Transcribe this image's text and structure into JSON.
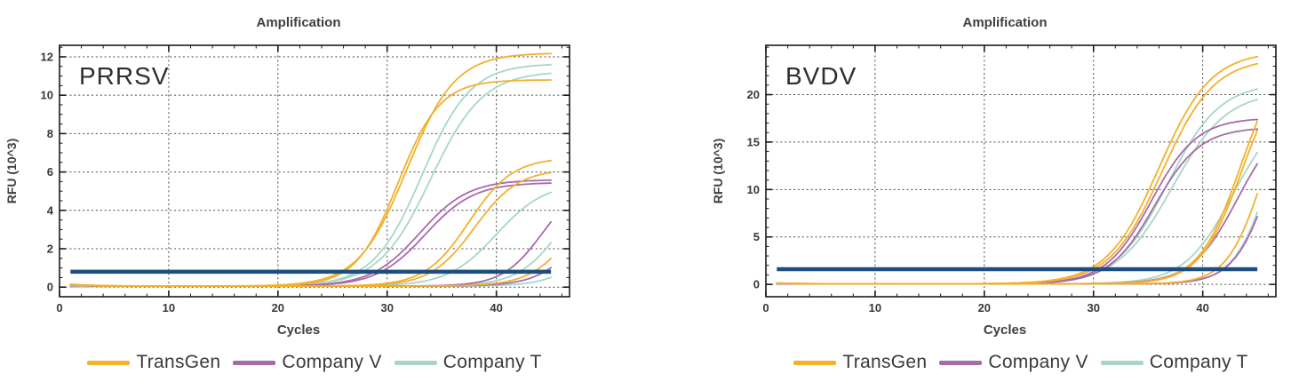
{
  "page": {
    "background": "#ffffff"
  },
  "palette": {
    "TransGen": "#f2b02c",
    "Company V": "#a76bab",
    "Company T": "#a8d6c6",
    "threshold": "#1e4e7d",
    "text": "#3f3f3f",
    "axis": "#1a1a1a",
    "grid": "#4a4a4a"
  },
  "legend": {
    "items": [
      {
        "label": "TransGen",
        "color": "#f2b02c"
      },
      {
        "label": "Company V",
        "color": "#a76bab"
      },
      {
        "label": "Company T",
        "color": "#a8d6c6"
      }
    ]
  },
  "chart_data": [
    {
      "type": "line",
      "title": "Amplification",
      "inner_label": "PRRSV",
      "xlabel": "Cycles",
      "ylabel": "RFU (10^3)",
      "xlim": [
        0,
        46.7
      ],
      "ylim": [
        -0.5,
        12.6
      ],
      "xticks": [
        0,
        10,
        20,
        30,
        40
      ],
      "yticks": [
        0,
        2,
        4,
        6,
        8,
        10,
        12
      ],
      "x_minor_step": 2,
      "y_minor_step": 0.5,
      "grid": "dotted",
      "baseline_rfu": 0.05,
      "cycle_range": [
        1,
        45
      ],
      "threshold": {
        "y": 0.8,
        "x_start": 1,
        "x_end": 45
      },
      "series": [
        {
          "company": "Company T",
          "midpoint": 33.2,
          "slope": 0.45,
          "plateau": 11.6,
          "bump": -0.08
        },
        {
          "company": "Company T",
          "midpoint": 34.0,
          "slope": 0.42,
          "plateau": 11.2,
          "bump": 0.03
        },
        {
          "company": "Company T",
          "midpoint": 40.0,
          "slope": 0.45,
          "plateau": 5.4,
          "bump": 0.03
        },
        {
          "company": "Company T",
          "midpoint": 46.0,
          "slope": 0.5,
          "plateau": 6.0,
          "bump": 0.03
        },
        {
          "company": "Company T",
          "midpoint": 50.0,
          "slope": 0.5,
          "plateau": 6.0,
          "bump": 0.03
        },
        {
          "company": "Company V",
          "midpoint": 33.0,
          "slope": 0.45,
          "plateau": 5.55,
          "bump": 0.08
        },
        {
          "company": "Company V",
          "midpoint": 33.5,
          "slope": 0.45,
          "plateau": 5.4,
          "bump": 0.06
        },
        {
          "company": "Company V",
          "midpoint": 44.2,
          "slope": 0.55,
          "plateau": 5.5,
          "bump": 0.05
        },
        {
          "company": "Company V",
          "midpoint": 48.3,
          "slope": 0.5,
          "plateau": 6.0,
          "bump": 0.05
        },
        {
          "company": "TransGen",
          "midpoint": 31.8,
          "slope": 0.45,
          "plateau": 12.15,
          "bump": 0.15
        },
        {
          "company": "TransGen",
          "midpoint": 31.0,
          "slope": 0.52,
          "plateau": 10.75,
          "bump": 0.12
        },
        {
          "company": "TransGen",
          "midpoint": 37.5,
          "slope": 0.5,
          "plateau": 6.7,
          "bump": 0.1
        },
        {
          "company": "TransGen",
          "midpoint": 38.0,
          "slope": 0.5,
          "plateau": 6.1,
          "bump": 0.08
        },
        {
          "company": "TransGen",
          "midpoint": 47.3,
          "slope": 0.5,
          "plateau": 6.0,
          "bump": 0.08
        }
      ]
    },
    {
      "type": "line",
      "title": "Amplification",
      "inner_label": "BVDV",
      "xlabel": "Cycles",
      "ylabel": "RFU (10^3)",
      "xlim": [
        0,
        46.7
      ],
      "ylim": [
        -1.3,
        25.2
      ],
      "xticks": [
        0,
        10,
        20,
        30,
        40
      ],
      "yticks": [
        0,
        5,
        10,
        15,
        20
      ],
      "x_minor_step": 2,
      "y_minor_step": 1,
      "grid": "dotted",
      "baseline_rfu": 0.05,
      "cycle_range": [
        1,
        45
      ],
      "threshold": {
        "y": 1.6,
        "x_start": 1,
        "x_end": 45
      },
      "series": [
        {
          "company": "Company T",
          "midpoint": 36.8,
          "slope": 0.42,
          "plateau": 21.2,
          "bump": 0.05
        },
        {
          "company": "Company T",
          "midpoint": 37.2,
          "slope": 0.4,
          "plateau": 20.3,
          "bump": 0.03
        },
        {
          "company": "Company T",
          "midpoint": 42.8,
          "slope": 0.45,
          "plateau": 19.0,
          "bump": 0.03
        },
        {
          "company": "Company T",
          "midpoint": 46.3,
          "slope": 0.6,
          "plateau": 24.0,
          "bump": 0.03
        },
        {
          "company": "Company V",
          "midpoint": 35.3,
          "slope": 0.48,
          "plateau": 17.5,
          "bump": 0.08
        },
        {
          "company": "Company V",
          "midpoint": 35.6,
          "slope": 0.48,
          "plateau": 16.5,
          "bump": 0.06
        },
        {
          "company": "Company V",
          "midpoint": 43.2,
          "slope": 0.48,
          "plateau": 18.0,
          "bump": 0.05
        },
        {
          "company": "Company V",
          "midpoint": 46.5,
          "slope": 0.58,
          "plateau": 24.0,
          "bump": 0.05
        },
        {
          "company": "TransGen",
          "midpoint": 36.0,
          "slope": 0.42,
          "plateau": 24.5,
          "bump": 0.15
        },
        {
          "company": "TransGen",
          "midpoint": 36.3,
          "slope": 0.42,
          "plateau": 23.8,
          "bump": 0.12
        },
        {
          "company": "TransGen",
          "midpoint": 43.5,
          "slope": 0.52,
          "plateau": 25.0,
          "bump": 0.1
        },
        {
          "company": "TransGen",
          "midpoint": 43.6,
          "slope": 0.52,
          "plateau": 24.0,
          "bump": 0.1
        },
        {
          "company": "TransGen",
          "midpoint": 45.7,
          "slope": 0.6,
          "plateau": 24.0,
          "bump": 0.1
        }
      ]
    }
  ]
}
